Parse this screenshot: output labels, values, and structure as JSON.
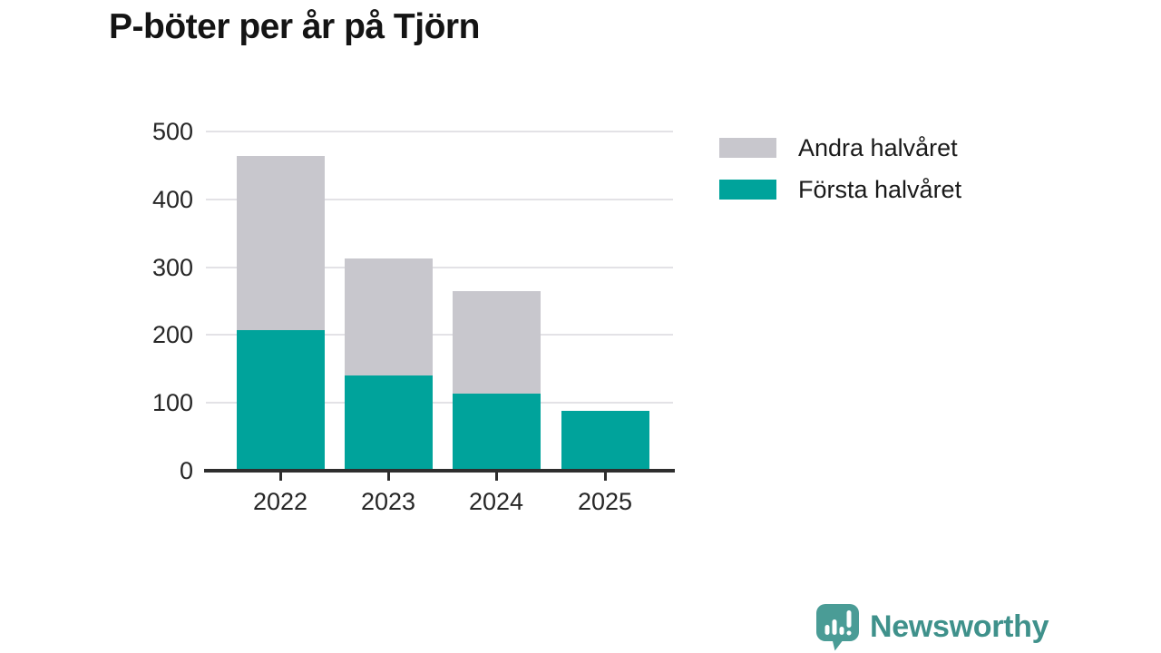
{
  "title": "P-böter per år på Tjörn",
  "chart_data": {
    "type": "bar",
    "stacked": true,
    "title": "P-böter per år på Tjörn",
    "categories": [
      "2022",
      "2023",
      "2024",
      "2025"
    ],
    "series": [
      {
        "name": "Andra halvåret",
        "color": "#c8c7cd",
        "values": [
          257,
          173,
          151,
          0
        ]
      },
      {
        "name": "Första halvåret",
        "color": "#00a39b",
        "values": [
          207,
          140,
          114,
          88
        ]
      }
    ],
    "totals": [
      464,
      313,
      265,
      88
    ],
    "xlabel": "",
    "ylabel": "",
    "ylim": [
      0,
      500
    ],
    "yticks": [
      0,
      100,
      200,
      300,
      400,
      500
    ],
    "grid": true,
    "legend_position": "top-right",
    "axis_color": "#2e2e2e",
    "gridline_color": "#e3e2e6"
  },
  "footer": {
    "brand": "Newsworthy",
    "brand_color": "#3f918b",
    "icon_color": "#4a9c96"
  }
}
